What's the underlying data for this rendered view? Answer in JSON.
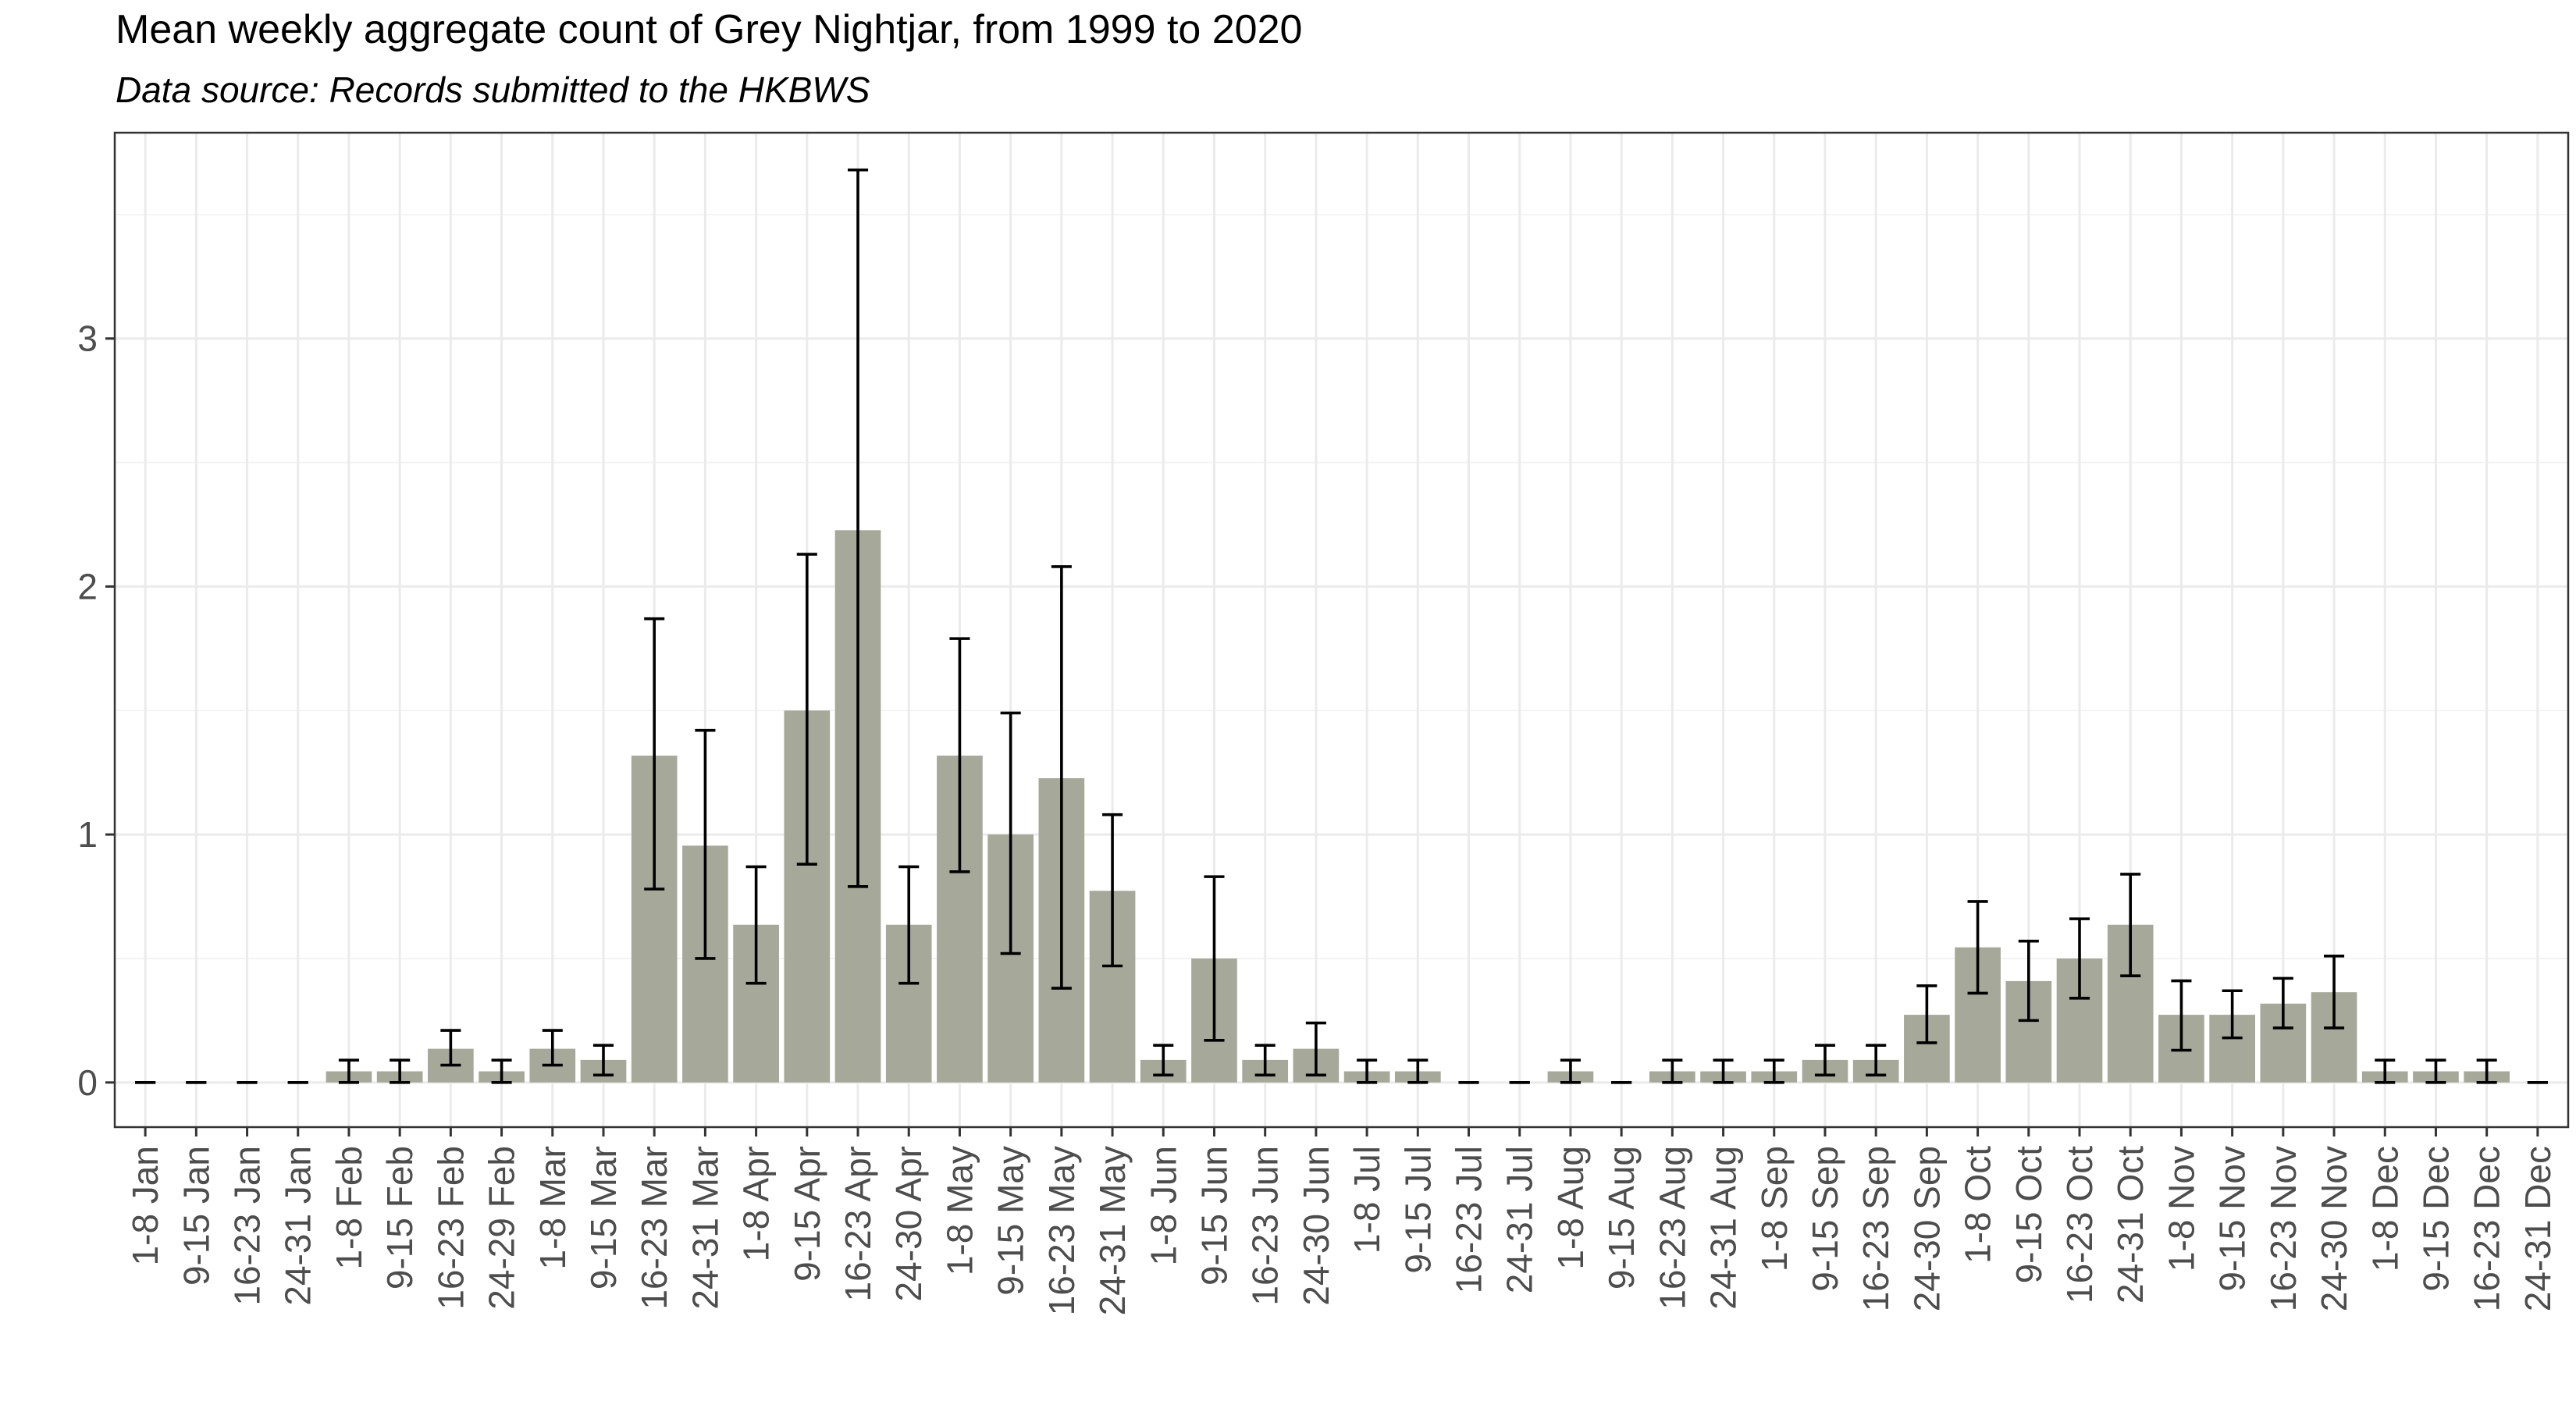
{
  "chart_data": {
    "type": "bar",
    "title": "Mean weekly aggregate count of Grey Nightjar, from 1999 to 2020",
    "subtitle": "Data source: Records submitted to the HKBWS",
    "xlabel": "",
    "ylabel": "",
    "ylim": [
      -0.18,
      3.83
    ],
    "yticks": [
      0,
      1,
      2,
      3
    ],
    "grid": true,
    "bar_color": "#a6a99a",
    "categories": [
      "1-8 Jan",
      "9-15 Jan",
      "16-23 Jan",
      "24-31 Jan",
      "1-8 Feb",
      "9-15 Feb",
      "16-23 Feb",
      "24-29 Feb",
      "1-8 Mar",
      "9-15 Mar",
      "16-23 Mar",
      "24-31 Mar",
      "1-8 Apr",
      "9-15 Apr",
      "16-23 Apr",
      "24-30 Apr",
      "1-8 May",
      "9-15 May",
      "16-23 May",
      "24-31 May",
      "1-8 Jun",
      "9-15 Jun",
      "16-23 Jun",
      "24-30 Jun",
      "1-8 Jul",
      "9-15 Jul",
      "16-23 Jul",
      "24-31 Jul",
      "1-8 Aug",
      "9-15 Aug",
      "16-23 Aug",
      "24-31 Aug",
      "1-8 Sep",
      "9-15 Sep",
      "16-23 Sep",
      "24-30 Sep",
      "1-8 Oct",
      "9-15 Oct",
      "16-23 Oct",
      "24-31 Oct",
      "1-8 Nov",
      "9-15 Nov",
      "16-23 Nov",
      "24-30 Nov",
      "1-8 Dec",
      "9-15 Dec",
      "16-23 Dec",
      "24-31 Dec"
    ],
    "values": [
      0,
      0,
      0,
      0,
      0.045,
      0.045,
      0.136,
      0.045,
      0.136,
      0.091,
      1.318,
      0.955,
      0.636,
      1.5,
      2.227,
      0.636,
      1.318,
      1.0,
      1.227,
      0.773,
      0.091,
      0.5,
      0.091,
      0.136,
      0.045,
      0.045,
      0,
      0,
      0.045,
      0,
      0.045,
      0.045,
      0.045,
      0.091,
      0.091,
      0.273,
      0.545,
      0.409,
      0.5,
      0.636,
      0.273,
      0.273,
      0.318,
      0.364,
      0.045,
      0.045,
      0.045,
      0
    ],
    "error_low": [
      0,
      0,
      0,
      0,
      0.0,
      0.0,
      0.07,
      0.0,
      0.07,
      0.03,
      0.78,
      0.5,
      0.4,
      0.88,
      0.79,
      0.4,
      0.85,
      0.52,
      0.38,
      0.47,
      0.03,
      0.17,
      0.03,
      0.03,
      0.0,
      0.0,
      0,
      0,
      0.0,
      0,
      0.0,
      0.0,
      0.0,
      0.03,
      0.03,
      0.16,
      0.36,
      0.25,
      0.34,
      0.43,
      0.13,
      0.18,
      0.22,
      0.22,
      0.0,
      0.0,
      0.0,
      0
    ],
    "error_high": [
      0,
      0,
      0,
      0,
      0.09,
      0.09,
      0.21,
      0.09,
      0.21,
      0.15,
      1.87,
      1.42,
      0.87,
      2.13,
      3.68,
      0.87,
      1.79,
      1.49,
      2.08,
      1.08,
      0.15,
      0.83,
      0.15,
      0.24,
      0.09,
      0.09,
      0,
      0,
      0.09,
      0,
      0.09,
      0.09,
      0.09,
      0.15,
      0.15,
      0.39,
      0.73,
      0.57,
      0.66,
      0.84,
      0.41,
      0.37,
      0.42,
      0.51,
      0.09,
      0.09,
      0.09,
      0
    ]
  }
}
